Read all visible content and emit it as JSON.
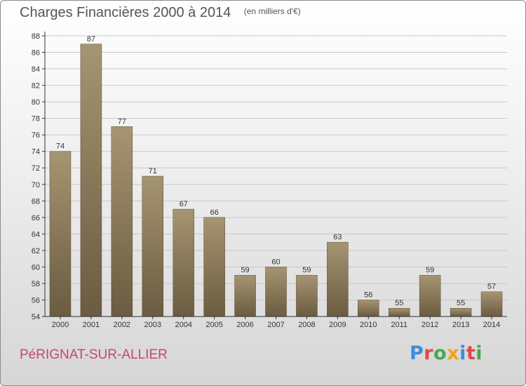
{
  "header": {
    "title": "Charges Financières 2000 à 2014",
    "subtitle": "(en milliers d'€)"
  },
  "footer": {
    "commune": "PéRIGNAT-SUR-ALLIER",
    "logo_text": "Proxiti",
    "logo_colors": [
      "#3b8ed8",
      "#e2454e",
      "#4aa84c",
      "#f2a21c",
      "#3b8ed8",
      "#e2454e",
      "#4aa84c"
    ]
  },
  "colors": {
    "bar_light": "#a59572",
    "bar_dark": "#6b5b40",
    "grid": "#c8c8c8",
    "axis": "#333333",
    "label": "#333333"
  },
  "chart_data": {
    "type": "bar",
    "categories": [
      "2000",
      "2001",
      "2002",
      "2003",
      "2004",
      "2005",
      "2006",
      "2007",
      "2008",
      "2009",
      "2010",
      "2011",
      "2012",
      "2013",
      "2014"
    ],
    "values": [
      74,
      87,
      77,
      71,
      67,
      66,
      59,
      60,
      59,
      63,
      56,
      55,
      59,
      55,
      57
    ],
    "data_labels": [
      "74",
      "87",
      "77",
      "71",
      "67",
      "66",
      "59",
      "60",
      "59",
      "63",
      "56",
      "55",
      "59",
      "55",
      "57"
    ],
    "y_ticks": [
      "54",
      "56",
      "58",
      "60",
      "62",
      "64",
      "66",
      "68",
      "70",
      "72",
      "74",
      "76",
      "78",
      "80",
      "82",
      "84",
      "86",
      "88"
    ],
    "ylim": [
      54,
      88
    ],
    "grid": true,
    "legend": "none"
  }
}
